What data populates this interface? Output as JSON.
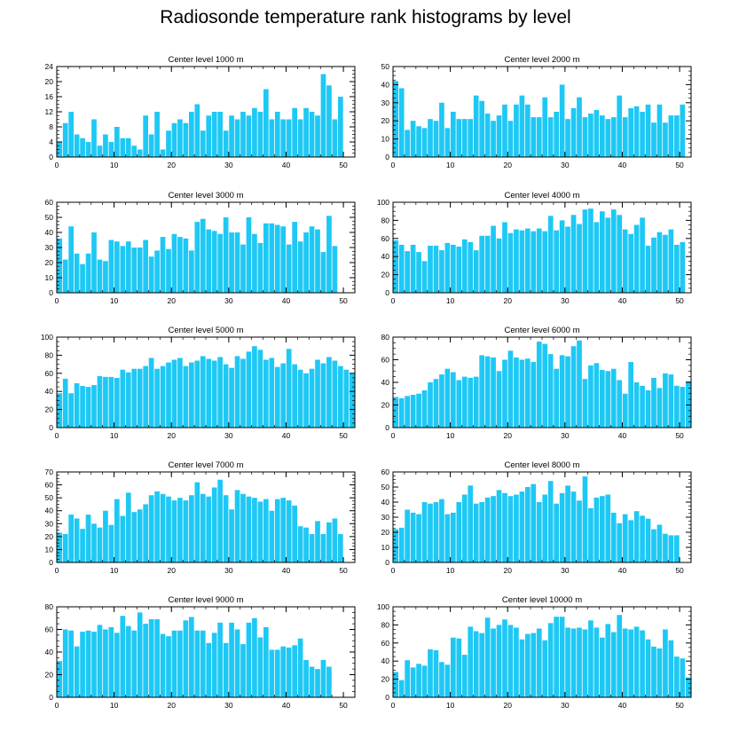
{
  "page": {
    "title": "Radiosonde temperature rank histograms by level"
  },
  "colors": {
    "bar": "#1ec8f5",
    "axis": "#000000"
  },
  "chart_data": [
    {
      "type": "bar",
      "title": "Center level 1000 m",
      "xlim": [
        0,
        52
      ],
      "ylim": [
        0,
        24
      ],
      "xticks": [
        0,
        10,
        20,
        30,
        40,
        50
      ],
      "yticks": [
        0,
        4,
        8,
        12,
        16,
        20,
        24
      ],
      "values": [
        4,
        9,
        12,
        6,
        5,
        4,
        10,
        3,
        6,
        4,
        8,
        5,
        5,
        3,
        2,
        11,
        6,
        12,
        2,
        7,
        9,
        10,
        9,
        12,
        14,
        7,
        11,
        12,
        12,
        7,
        11,
        10,
        12,
        11,
        13,
        12,
        18,
        10,
        12,
        10,
        10,
        13,
        10,
        13,
        12,
        11,
        22,
        19,
        10,
        16
      ]
    },
    {
      "type": "bar",
      "title": "Center level 2000 m",
      "xlim": [
        0,
        52
      ],
      "ylim": [
        0,
        50
      ],
      "xticks": [
        0,
        10,
        20,
        30,
        40,
        50
      ],
      "yticks": [
        0,
        10,
        20,
        30,
        40,
        50
      ],
      "values": [
        42,
        38,
        15,
        20,
        17,
        16,
        21,
        20,
        30,
        16,
        25,
        21,
        21,
        21,
        34,
        31,
        24,
        20,
        23,
        29,
        20,
        29,
        34,
        29,
        22,
        22,
        33,
        22,
        25,
        40,
        21,
        27,
        33,
        22,
        24,
        26,
        23,
        21,
        22,
        34,
        22,
        27,
        28,
        25,
        29,
        19,
        29,
        19,
        23,
        23,
        29
      ]
    },
    {
      "type": "bar",
      "title": "Center level 3000 m",
      "xlim": [
        0,
        52
      ],
      "ylim": [
        0,
        60
      ],
      "xticks": [
        0,
        10,
        20,
        30,
        40,
        50
      ],
      "yticks": [
        0,
        10,
        20,
        30,
        40,
        50,
        60
      ],
      "values": [
        36,
        22,
        44,
        26,
        19,
        26,
        40,
        22,
        21,
        35,
        34,
        31,
        34,
        30,
        30,
        35,
        24,
        28,
        37,
        29,
        39,
        37,
        36,
        28,
        47,
        49,
        42,
        41,
        39,
        50,
        40,
        40,
        32,
        50,
        39,
        33,
        46,
        46,
        45,
        44,
        32,
        47,
        34,
        40,
        44,
        42,
        27,
        51,
        31
      ]
    },
    {
      "type": "bar",
      "title": "Center level 4000 m",
      "xlim": [
        0,
        52
      ],
      "ylim": [
        0,
        100
      ],
      "xticks": [
        0,
        10,
        20,
        30,
        40,
        50
      ],
      "yticks": [
        0,
        20,
        40,
        60,
        80,
        100
      ],
      "values": [
        58,
        53,
        46,
        53,
        45,
        35,
        52,
        52,
        47,
        55,
        53,
        51,
        59,
        56,
        47,
        63,
        63,
        74,
        60,
        78,
        66,
        70,
        69,
        71,
        68,
        71,
        68,
        85,
        69,
        80,
        73,
        86,
        76,
        92,
        93,
        78,
        90,
        83,
        92,
        86,
        70,
        65,
        75,
        83,
        52,
        61,
        67,
        64,
        70,
        53,
        56
      ]
    },
    {
      "type": "bar",
      "title": "Center level 5000 m",
      "xlim": [
        0,
        52
      ],
      "ylim": [
        0,
        100
      ],
      "xticks": [
        0,
        10,
        20,
        30,
        40,
        50
      ],
      "yticks": [
        0,
        20,
        40,
        60,
        80,
        100
      ],
      "values": [
        38,
        54,
        38,
        49,
        46,
        45,
        47,
        57,
        56,
        56,
        55,
        64,
        61,
        65,
        65,
        68,
        77,
        65,
        68,
        72,
        75,
        77,
        68,
        72,
        74,
        79,
        76,
        74,
        78,
        70,
        66,
        79,
        76,
        84,
        90,
        86,
        75,
        77,
        67,
        71,
        87,
        70,
        64,
        60,
        65,
        75,
        71,
        78,
        74,
        68,
        64,
        60
      ]
    },
    {
      "type": "bar",
      "title": "Center level 6000 m",
      "xlim": [
        0,
        52
      ],
      "ylim": [
        0,
        80
      ],
      "xticks": [
        0,
        10,
        20,
        30,
        40,
        50
      ],
      "yticks": [
        0,
        20,
        40,
        60,
        80
      ],
      "values": [
        27,
        26,
        28,
        29,
        30,
        33,
        40,
        43,
        47,
        52,
        49,
        42,
        45,
        44,
        45,
        64,
        63,
        62,
        50,
        60,
        68,
        62,
        60,
        61,
        58,
        76,
        74,
        65,
        52,
        64,
        63,
        72,
        77,
        43,
        55,
        57,
        51,
        50,
        52,
        42,
        30,
        58,
        40,
        37,
        33,
        44,
        35,
        48,
        47,
        37,
        36,
        41
      ]
    },
    {
      "type": "bar",
      "title": "Center level 7000 m",
      "xlim": [
        0,
        52
      ],
      "ylim": [
        0,
        70
      ],
      "xticks": [
        0,
        10,
        20,
        30,
        40,
        50
      ],
      "yticks": [
        0,
        10,
        20,
        30,
        40,
        50,
        60,
        70
      ],
      "values": [
        23,
        22,
        37,
        34,
        26,
        37,
        30,
        27,
        40,
        29,
        49,
        36,
        54,
        39,
        41,
        45,
        52,
        55,
        53,
        51,
        48,
        50,
        48,
        52,
        62,
        53,
        51,
        58,
        64,
        52,
        41,
        56,
        53,
        51,
        50,
        47,
        49,
        40,
        49,
        50,
        48,
        44,
        28,
        27,
        22,
        32,
        22,
        31,
        34,
        22
      ]
    },
    {
      "type": "bar",
      "title": "Center level 8000 m",
      "xlim": [
        0,
        52
      ],
      "ylim": [
        0,
        60
      ],
      "xticks": [
        0,
        10,
        20,
        30,
        40,
        50
      ],
      "yticks": [
        0,
        10,
        20,
        30,
        40,
        50,
        60
      ],
      "values": [
        22,
        23,
        35,
        33,
        32,
        40,
        39,
        40,
        42,
        32,
        33,
        40,
        45,
        51,
        39,
        40,
        43,
        44,
        48,
        46,
        44,
        45,
        47,
        50,
        52,
        40,
        45,
        54,
        39,
        46,
        51,
        47,
        41,
        57,
        36,
        43,
        44,
        45,
        33,
        26,
        32,
        28,
        34,
        31,
        29,
        22,
        25,
        19,
        18,
        18
      ]
    },
    {
      "type": "bar",
      "title": "Center level 9000 m",
      "xlim": [
        0,
        52
      ],
      "ylim": [
        0,
        80
      ],
      "xticks": [
        0,
        10,
        20,
        30,
        40,
        50
      ],
      "yticks": [
        0,
        20,
        40,
        60,
        80
      ],
      "values": [
        32,
        60,
        59,
        45,
        58,
        59,
        58,
        64,
        60,
        62,
        57,
        72,
        63,
        59,
        75,
        65,
        69,
        69,
        56,
        54,
        59,
        59,
        68,
        71,
        59,
        59,
        48,
        57,
        66,
        48,
        66,
        60,
        47,
        66,
        70,
        53,
        62,
        42,
        42,
        45,
        44,
        46,
        52,
        33,
        27,
        25,
        33,
        27
      ]
    },
    {
      "type": "bar",
      "title": "Center level 10000 m",
      "xlim": [
        0,
        52
      ],
      "ylim": [
        0,
        100
      ],
      "xticks": [
        0,
        10,
        20,
        30,
        40,
        50
      ],
      "yticks": [
        0,
        20,
        40,
        60,
        80,
        100
      ],
      "values": [
        28,
        19,
        41,
        33,
        37,
        35,
        53,
        52,
        39,
        36,
        66,
        65,
        47,
        78,
        73,
        71,
        88,
        76,
        80,
        86,
        80,
        77,
        64,
        70,
        71,
        76,
        63,
        82,
        89,
        89,
        77,
        76,
        77,
        75,
        85,
        77,
        66,
        81,
        72,
        91,
        76,
        75,
        78,
        74,
        64,
        56,
        54,
        75,
        63,
        45,
        43,
        22
      ]
    }
  ]
}
